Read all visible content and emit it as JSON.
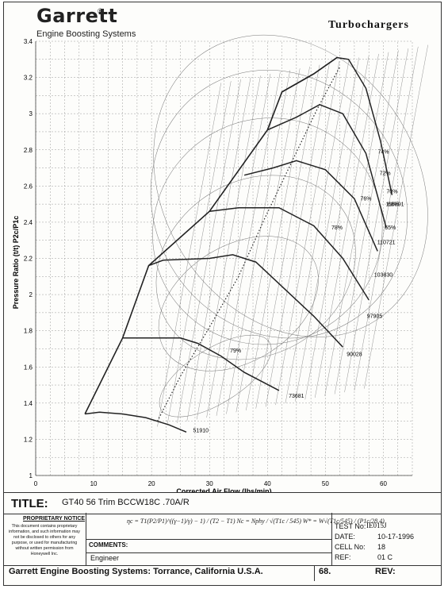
{
  "header": {
    "logo_text": "Garrett",
    "logo_reg": "®",
    "logo_subtitle": "Engine Boosting Systems",
    "brand": "Turbochargers"
  },
  "chart_data": {
    "type": "compressor-map",
    "xlabel": "Corrected Air Flow (lbs/min)",
    "ylabel": "Pressure Ratio (t/t) P2c/P1c",
    "xlim": [
      0,
      65
    ],
    "ylim": [
      1,
      3.4
    ],
    "x_ticks": [
      0,
      10,
      20,
      30,
      40,
      50,
      60
    ],
    "y_ticks": [
      1,
      1.2,
      1.4,
      1.6,
      1.8,
      2,
      2.2,
      2.4,
      2.6,
      2.8,
      3,
      3.2,
      3.4
    ],
    "x_tick_labels": [
      "0",
      "10",
      "20",
      "30",
      "40",
      "50",
      "60"
    ],
    "y_tick_labels": [
      "1",
      "1.2",
      "1.4",
      "1.6",
      "1.8",
      "2",
      "2.2",
      "2.4",
      "2.6",
      "2.8",
      "3",
      "3.2",
      "3.4"
    ],
    "grid": true,
    "surge_line": [
      [
        8.5,
        1.34
      ],
      [
        15,
        1.76
      ],
      [
        19.5,
        2.16
      ],
      [
        30,
        2.46
      ],
      [
        40,
        2.91
      ],
      [
        42.5,
        3.12
      ],
      [
        48,
        3.22
      ],
      [
        52,
        3.31
      ]
    ],
    "speed_lines": [
      {
        "label": "51910",
        "points": [
          [
            8.5,
            1.34
          ],
          [
            11,
            1.35
          ],
          [
            15,
            1.34
          ],
          [
            19,
            1.32
          ],
          [
            23,
            1.28
          ],
          [
            26,
            1.24
          ]
        ],
        "label_at": [
          28.5,
          1.24
        ]
      },
      {
        "label": "73681",
        "points": [
          [
            15,
            1.76
          ],
          [
            25,
            1.76
          ],
          [
            28,
            1.73
          ],
          [
            32,
            1.66
          ],
          [
            36,
            1.57
          ],
          [
            42,
            1.47
          ]
        ],
        "label_at": [
          45,
          1.43
        ]
      },
      {
        "label": "90028",
        "points": [
          [
            19.5,
            2.16
          ],
          [
            22,
            2.19
          ],
          [
            30,
            2.2
          ],
          [
            34,
            2.22
          ],
          [
            38,
            2.18
          ],
          [
            44,
            2.0
          ],
          [
            48,
            1.88
          ],
          [
            53,
            1.71
          ]
        ],
        "label_at": [
          55,
          1.66
        ]
      },
      {
        "label": "97905",
        "points": [
          [
            30,
            2.46
          ],
          [
            35,
            2.48
          ],
          [
            42,
            2.48
          ],
          [
            48,
            2.38
          ],
          [
            53,
            2.2
          ],
          [
            57.5,
            1.97
          ]
        ],
        "label_at": [
          58.5,
          1.87
        ]
      },
      {
        "label": "103830",
        "points": [
          [
            36,
            2.66
          ],
          [
            41,
            2.7
          ],
          [
            45,
            2.74
          ],
          [
            50,
            2.69
          ],
          [
            55,
            2.53
          ],
          [
            59,
            2.24
          ]
        ],
        "label_at": [
          60,
          2.1
        ]
      },
      {
        "label": "110721",
        "points": [
          [
            40,
            2.91
          ],
          [
            45,
            2.98
          ],
          [
            49,
            3.05
          ],
          [
            53,
            3.0
          ],
          [
            57,
            2.78
          ],
          [
            60.5,
            2.37
          ]
        ],
        "label_at": [
          60.5,
          2.28
        ]
      },
      {
        "label": "116891",
        "points": [
          [
            42.5,
            3.12
          ],
          [
            48,
            3.22
          ],
          [
            52,
            3.31
          ],
          [
            54,
            3.3
          ],
          [
            57,
            3.14
          ],
          [
            59.5,
            2.85
          ],
          [
            61.5,
            2.55
          ]
        ],
        "label_at": [
          62,
          2.49
        ]
      }
    ],
    "max_efficiency_line": [
      [
        21,
        1.3
      ],
      [
        25,
        1.55
      ],
      [
        30,
        1.82
      ],
      [
        35,
        2.1
      ],
      [
        39.5,
        2.42
      ],
      [
        44,
        2.72
      ],
      [
        48.5,
        3.02
      ],
      [
        52.5,
        3.26
      ]
    ],
    "efficiency_labels": [
      {
        "text": "79%",
        "at": [
          34.5,
          1.68
        ]
      },
      {
        "text": "78%",
        "at": [
          52,
          2.36
        ]
      },
      {
        "text": "76%",
        "at": [
          57,
          2.52
        ]
      },
      {
        "text": "74%",
        "at": [
          60,
          2.78
        ]
      },
      {
        "text": "72%",
        "at": [
          60.3,
          2.66
        ]
      },
      {
        "text": "70%",
        "at": [
          61.5,
          2.56
        ]
      },
      {
        "text": "68%",
        "at": [
          61.7,
          2.49
        ]
      },
      {
        "text": "65%",
        "at": [
          61.2,
          2.36
        ]
      }
    ]
  },
  "title_block": {
    "title_label": "TITLE:",
    "title_value": "GT40 56 Trim BCCW18C .70A/R",
    "notice_heading": "PROPRIETARY NOTICE",
    "notice_text": "This document contains proprietary information, and such information may not be disclosed to others for any purpose, or used for manufacturing without written permission from Honeywell Inc.",
    "formula_text": "ηc = T1(P2/P1)^((γ−1)/γ) − 1) / (T2 − T1)     Nc = Nphy / √(T1c / 545)     W* = W√(T1c/545) / (P1c/28.4)",
    "comments_label": "COMMENTS:",
    "engineer_label": "Engineer",
    "test_no_label": "TEST No:",
    "test_no": "IE015J",
    "date_label": "DATE:",
    "date": "10-17-1996",
    "cell_label": "CELL No:",
    "cell": "18",
    "ref_label": "REF:",
    "ref": "01   C",
    "footer_company": "Garrett Engine Boosting Systems: Torrance, California U.S.A.",
    "footer_number": "68.",
    "footer_rev": "REV:"
  }
}
